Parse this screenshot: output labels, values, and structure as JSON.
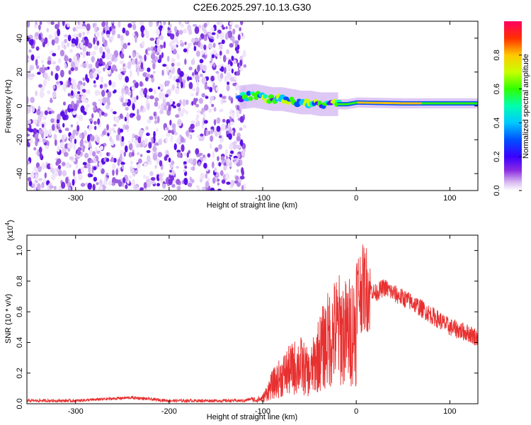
{
  "title": "C2E6.2025.297.10.13.G30",
  "chart_data": [
    {
      "type": "heatmap",
      "title": "C2E6.2025.297.10.13.G30",
      "xlabel": "Height of straight line (km)",
      "ylabel": "Frequency (Hz)",
      "xlim": [
        -352,
        130
      ],
      "ylim": [
        -50,
        50
      ],
      "xticks": [
        -300,
        -200,
        -100,
        0,
        100
      ],
      "yticks": [
        -40,
        -20,
        0,
        20,
        40
      ],
      "noise_region_km": [
        -352,
        -125
      ],
      "signal_track": [
        {
          "x": -125,
          "f": 5
        },
        {
          "x": -110,
          "f": 6
        },
        {
          "x": -100,
          "f": 5
        },
        {
          "x": -90,
          "f": 4
        },
        {
          "x": -80,
          "f": 4
        },
        {
          "x": -70,
          "f": 3
        },
        {
          "x": -60,
          "f": 2
        },
        {
          "x": -50,
          "f": 2
        },
        {
          "x": -40,
          "f": 1
        },
        {
          "x": -30,
          "f": 1
        },
        {
          "x": -20,
          "f": 1
        },
        {
          "x": -10,
          "f": 1
        },
        {
          "x": 0,
          "f": 2
        },
        {
          "x": 50,
          "f": 1.5
        },
        {
          "x": 100,
          "f": 1.5
        },
        {
          "x": 130,
          "f": 1.5
        }
      ],
      "colorbar": {
        "label": "Normalized spectral amplitude",
        "range": [
          0,
          1
        ],
        "ticks": [
          "0.0",
          "0.2",
          "0.4",
          "0.6",
          "0.8"
        ]
      }
    },
    {
      "type": "line",
      "xlabel": "Height of straight line (km)",
      "ylabel": "SNR (10 * v/v)",
      "y_multiplier": "(x10",
      "y_multiplier_exp": "4",
      "y_multiplier_close": ")",
      "xlim": [
        -352,
        130
      ],
      "ylim": [
        0,
        1.1
      ],
      "xticks": [
        -300,
        -200,
        -100,
        0,
        100
      ],
      "yticks": [
        "0.0",
        "0.2",
        "0.4",
        "0.6",
        "0.8",
        "1.0"
      ],
      "color": "#e83030",
      "envelope": [
        {
          "x": -352,
          "y": 0.02
        },
        {
          "x": -300,
          "y": 0.02
        },
        {
          "x": -240,
          "y": 0.04
        },
        {
          "x": -200,
          "y": 0.02
        },
        {
          "x": -120,
          "y": 0.02
        },
        {
          "x": -100,
          "y": 0.05
        },
        {
          "x": -90,
          "y": 0.18
        },
        {
          "x": -75,
          "y": 0.3
        },
        {
          "x": -60,
          "y": 0.38
        },
        {
          "x": -50,
          "y": 0.28
        },
        {
          "x": -40,
          "y": 0.48
        },
        {
          "x": -30,
          "y": 0.62
        },
        {
          "x": -20,
          "y": 0.72
        },
        {
          "x": -10,
          "y": 0.68
        },
        {
          "x": 0,
          "y": 0.75
        },
        {
          "x": 10,
          "y": 0.78
        },
        {
          "x": 20,
          "y": 0.72
        },
        {
          "x": 30,
          "y": 0.76
        },
        {
          "x": 40,
          "y": 0.72
        },
        {
          "x": 60,
          "y": 0.66
        },
        {
          "x": 80,
          "y": 0.58
        },
        {
          "x": 100,
          "y": 0.5
        },
        {
          "x": 120,
          "y": 0.46
        },
        {
          "x": 130,
          "y": 0.43
        }
      ]
    }
  ]
}
